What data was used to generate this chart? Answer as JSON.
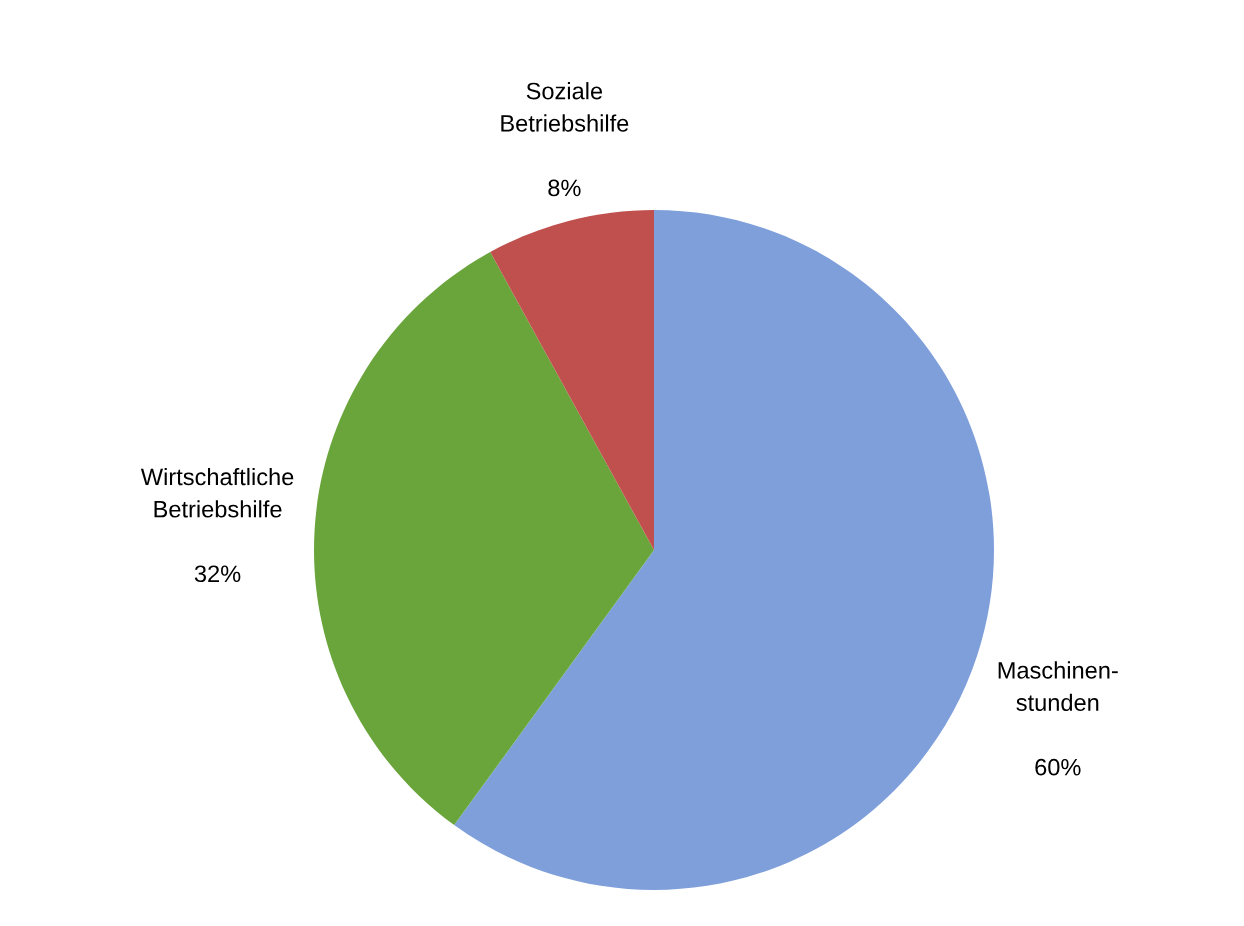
{
  "chart_data": {
    "type": "pie",
    "categories": [
      "Maschinen-\nstunden",
      "Wirtschaftliche\nBetriebshilfe",
      "Soziale\nBetriebshilfe"
    ],
    "values": [
      60,
      32,
      8
    ],
    "colors": [
      "#7f9fdb",
      "#6aa53c",
      "#c0504d"
    ],
    "value_labels": [
      "60%",
      "32%",
      "8%"
    ]
  }
}
